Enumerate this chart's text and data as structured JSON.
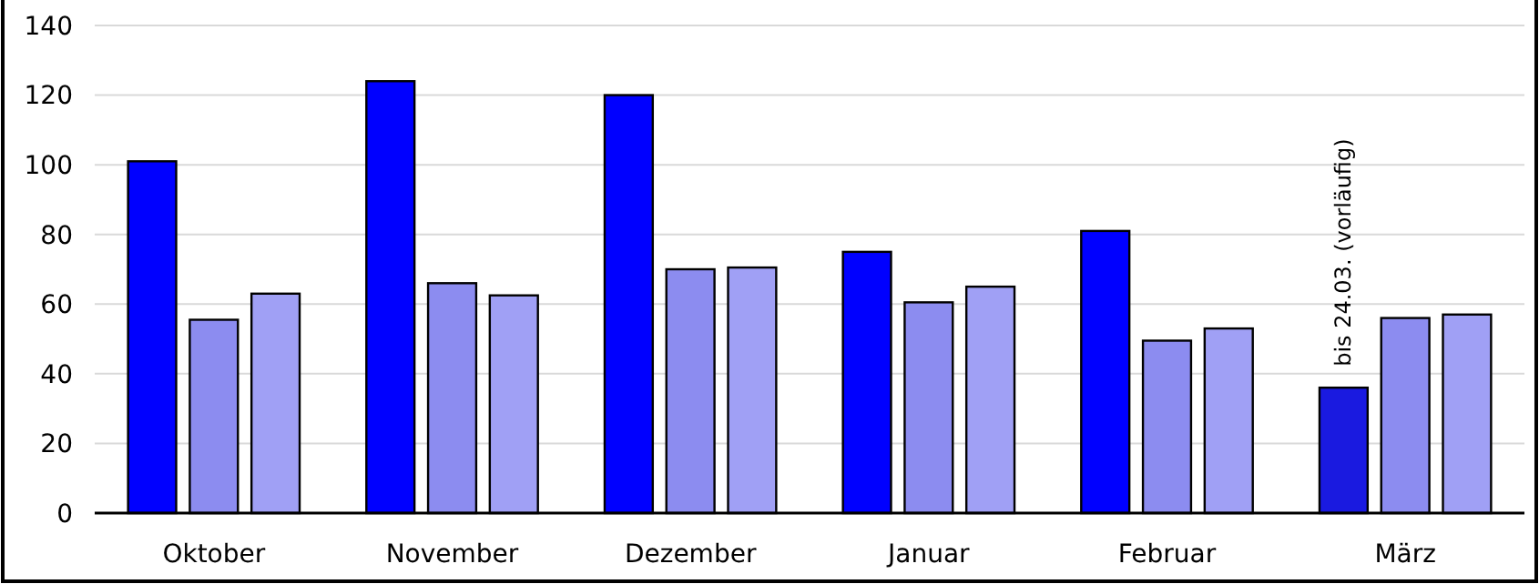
{
  "chart_data": {
    "type": "bar",
    "categories": [
      "Oktober",
      "November",
      "Dezember",
      "Januar",
      "Februar",
      "März"
    ],
    "series": [
      {
        "colors": [
          "#0000ff",
          "#0000ff",
          "#0000ff",
          "#0000ff",
          "#0000ff",
          "#1a1ae0"
        ],
        "values": [
          101,
          124,
          120,
          75,
          81,
          36
        ]
      },
      {
        "color": "#8c8cf0",
        "values": [
          55.5,
          66,
          70,
          60.5,
          49.5,
          56
        ]
      },
      {
        "color": "#a0a0f5",
        "values": [
          63,
          62.5,
          70.5,
          65,
          53,
          57
        ]
      }
    ],
    "ylim": [
      0,
      140
    ],
    "yticks": [
      0,
      20,
      40,
      60,
      80,
      100,
      120,
      140
    ],
    "grid": "y",
    "annotations": [
      "bis 24.03. (vorläufig)"
    ]
  }
}
